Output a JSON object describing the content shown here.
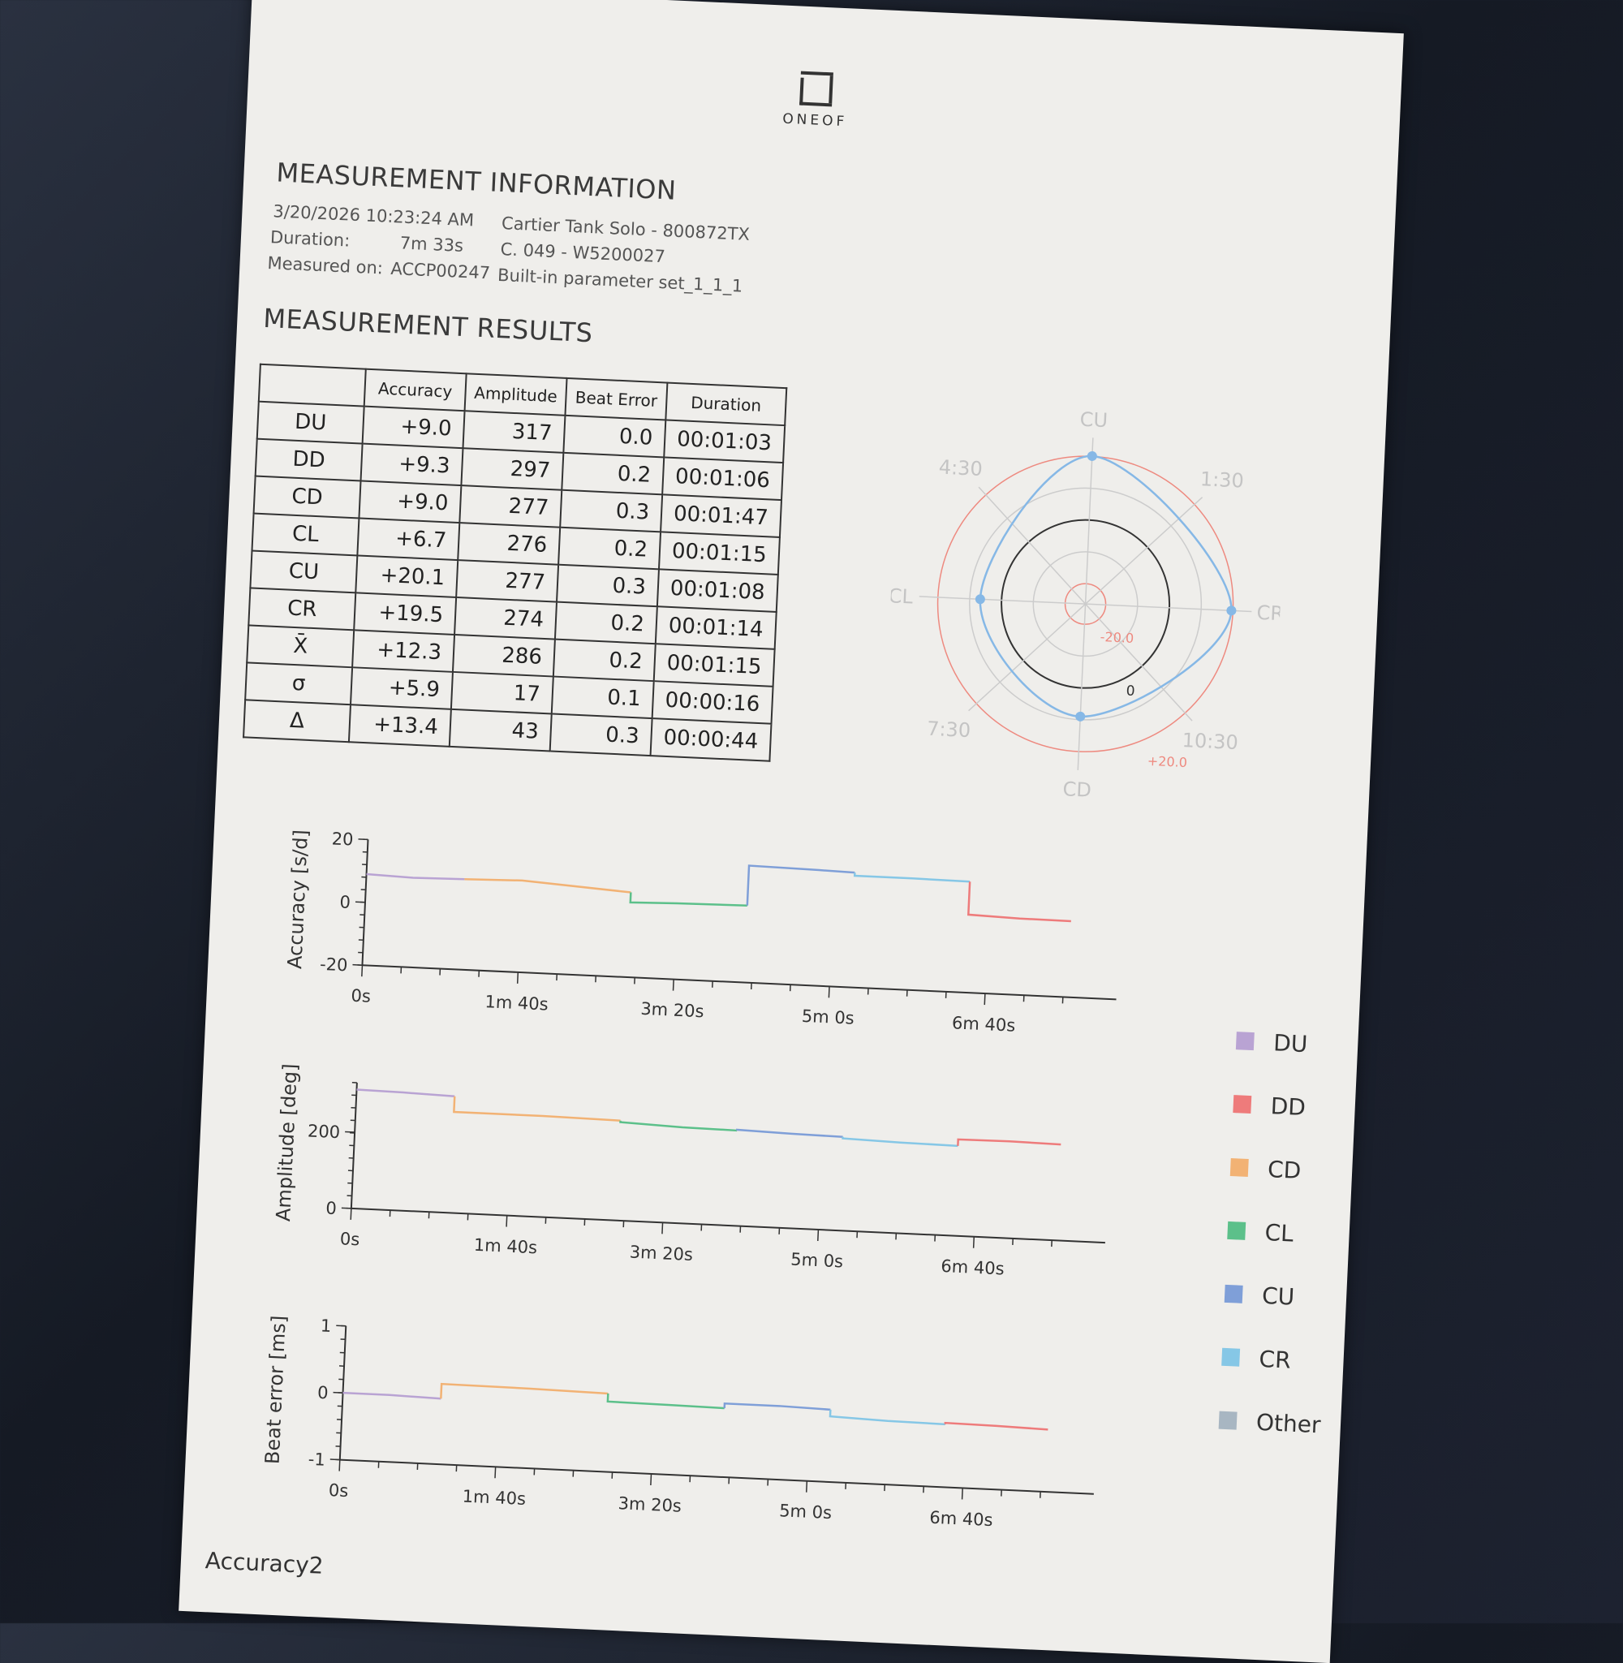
{
  "logo": {
    "text": "ONEOF"
  },
  "info": {
    "title": "MEASUREMENT INFORMATION",
    "datetime": "3/20/2026 10:23:24 AM",
    "duration_label": "Duration:",
    "duration": "7m 33s",
    "measured_label": "Measured on:",
    "device": "ACCP00247",
    "watch": "Cartier Tank Solo - 800872TX",
    "caliber": "C. 049 - W5200027",
    "params": "Built-in parameter set_1_1_1"
  },
  "results": {
    "title": "MEASUREMENT RESULTS",
    "columns": [
      "",
      "Accuracy",
      "Amplitude",
      "Beat Error",
      "Duration"
    ],
    "rows": [
      [
        "DU",
        "+9.0",
        "317",
        "0.0",
        "00:01:03"
      ],
      [
        "DD",
        "+9.3",
        "297",
        "0.2",
        "00:01:06"
      ],
      [
        "CD",
        "+9.0",
        "277",
        "0.3",
        "00:01:47"
      ],
      [
        "CL",
        "+6.7",
        "276",
        "0.2",
        "00:01:15"
      ],
      [
        "CU",
        "+20.1",
        "277",
        "0.3",
        "00:01:08"
      ],
      [
        "CR",
        "+19.5",
        "274",
        "0.2",
        "00:01:14"
      ],
      [
        "X̄",
        "+12.3",
        "286",
        "0.2",
        "00:01:15"
      ],
      [
        "σ",
        "+5.9",
        "17",
        "0.1",
        "00:00:16"
      ],
      [
        "Δ",
        "+13.4",
        "43",
        "0.3",
        "00:00:44"
      ]
    ]
  },
  "colors": {
    "DU": "#b9a3d3",
    "DD": "#ee7b7b",
    "CD": "#f2b274",
    "CL": "#5cc08a",
    "CU": "#7f9fd8",
    "CR": "#86c7e6",
    "Other": "#a8b6c2",
    "polar_line": "#86b8e6",
    "polar_ring": "#ee8a80"
  },
  "legend": [
    "DU",
    "DD",
    "CD",
    "CL",
    "CU",
    "CR",
    "Other"
  ],
  "footer": "Accuracy2",
  "chart_data": [
    {
      "type": "polar",
      "axis_labels": [
        "CU",
        "1:30",
        "CR",
        "10:30",
        "CD",
        "7:30",
        "CL",
        "4:30"
      ],
      "ring_labels": [
        "-20.0",
        "0",
        "+20.0"
      ],
      "rlim": [
        -20,
        20
      ],
      "points": {
        "CU": 20.1,
        "CR": 19.5,
        "CD": 9.0,
        "CL": 6.7
      }
    },
    {
      "type": "line",
      "ylabel": "Accuracy [s/d]",
      "ylim": [
        -20,
        20
      ],
      "yticks": [
        "-20",
        "0",
        "20"
      ],
      "xticks": [
        "0s",
        "1m 40s",
        "3m 20s",
        "5m 0s",
        "6m 40s"
      ],
      "xlim": [
        0,
        453
      ],
      "series": [
        {
          "name": "DU",
          "x": [
            0,
            30,
            63
          ],
          "y": [
            9,
            8.5,
            8.8
          ]
        },
        {
          "name": "CD",
          "x": [
            63,
            100,
            170
          ],
          "y": [
            8.8,
            9.2,
            7
          ]
        },
        {
          "name": "CL",
          "x": [
            170,
            200,
            245
          ],
          "y": [
            3.8,
            4.2,
            4.5
          ]
        },
        {
          "name": "CU",
          "x": [
            245,
            290,
            313
          ],
          "y": [
            17.2,
            16.8,
            16.5
          ]
        },
        {
          "name": "CR",
          "x": [
            313,
            350,
            387
          ],
          "y": [
            15.5,
            15.5,
            15.3
          ]
        },
        {
          "name": "DD",
          "x": [
            387,
            420,
            453
          ],
          "y": [
            4.8,
            4.3,
            4.2
          ]
        }
      ]
    },
    {
      "type": "line",
      "ylabel": "Amplitude [deg]",
      "ylim": [
        0,
        330
      ],
      "yticks": [
        "0",
        "200"
      ],
      "xticks": [
        "0s",
        "1m 40s",
        "3m 20s",
        "5m 0s",
        "6m 40s"
      ],
      "xlim": [
        0,
        453
      ],
      "series": [
        {
          "name": "DU",
          "x": [
            0,
            30,
            63
          ],
          "y": [
            312,
            310,
            306
          ]
        },
        {
          "name": "CD",
          "x": [
            63,
            120,
            170
          ],
          "y": [
            265,
            265,
            262
          ]
        },
        {
          "name": "CL",
          "x": [
            170,
            210,
            245
          ],
          "y": [
            258,
            252,
            250
          ]
        },
        {
          "name": "CU",
          "x": [
            245,
            280,
            313
          ],
          "y": [
            252,
            248,
            246
          ]
        },
        {
          "name": "CR",
          "x": [
            313,
            350,
            387
          ],
          "y": [
            242,
            238,
            236
          ]
        },
        {
          "name": "DD",
          "x": [
            387,
            420,
            453
          ],
          "y": [
            253,
            254,
            252
          ]
        }
      ]
    },
    {
      "type": "line",
      "ylabel": "Beat error [ms]",
      "ylim": [
        -1,
        1
      ],
      "yticks": [
        "-1",
        "0",
        "1"
      ],
      "xticks": [
        "0s",
        "1m 40s",
        "3m 20s",
        "5m 0s",
        "6m 40s"
      ],
      "xlim": [
        0,
        453
      ],
      "series": [
        {
          "name": "DU",
          "x": [
            0,
            30,
            63
          ],
          "y": [
            0,
            0,
            -0.02
          ]
        },
        {
          "name": "CD",
          "x": [
            63,
            120,
            170
          ],
          "y": [
            0.2,
            0.19,
            0.17
          ]
        },
        {
          "name": "CL",
          "x": [
            170,
            210,
            245
          ],
          "y": [
            0.05,
            0.04,
            0.03
          ]
        },
        {
          "name": "CU",
          "x": [
            245,
            280,
            313
          ],
          "y": [
            0.1,
            0.1,
            0.08
          ]
        },
        {
          "name": "CR",
          "x": [
            313,
            350,
            387
          ],
          "y": [
            -0.02,
            -0.05,
            -0.06
          ]
        },
        {
          "name": "DD",
          "x": [
            387,
            420,
            453
          ],
          "y": [
            -0.04,
            -0.05,
            -0.07
          ]
        }
      ]
    }
  ]
}
